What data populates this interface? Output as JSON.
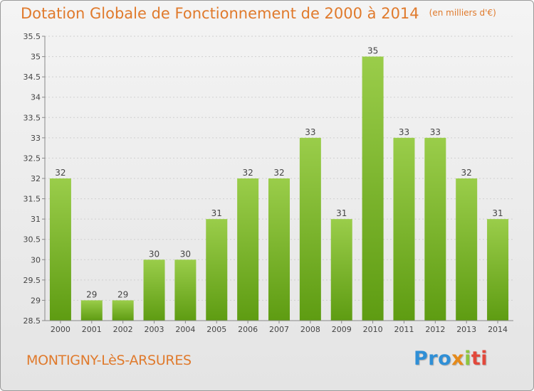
{
  "title": "Dotation Globale de Fonctionnement de 2000 à 2014",
  "unit": "(en milliers d'€)",
  "commune": "MONTIGNY-LèS-ARSURES",
  "logo": {
    "p1": "Pro",
    "p2": "x",
    "p3": "i",
    "p4": "ti"
  },
  "colors": {
    "bar_top": "#9acd4a",
    "bar_bottom": "#5e9c12",
    "title": "#e07a2c"
  },
  "chart_data": {
    "type": "bar",
    "categories": [
      "2000",
      "2001",
      "2002",
      "2003",
      "2004",
      "2005",
      "2006",
      "2007",
      "2008",
      "2009",
      "2010",
      "2011",
      "2012",
      "2013",
      "2014"
    ],
    "values": [
      32,
      29,
      29,
      30,
      30,
      31,
      32,
      32,
      33,
      31,
      35,
      33,
      33,
      32,
      31
    ],
    "data_labels": [
      "32",
      "29",
      "29",
      "30",
      "30",
      "31",
      "32",
      "32",
      "33",
      "31",
      "35",
      "33",
      "33",
      "32",
      "31"
    ],
    "ylim": [
      28.5,
      35.5
    ],
    "yticks": [
      28.5,
      29,
      29.5,
      30,
      30.5,
      31,
      31.5,
      32,
      32.5,
      33,
      33.5,
      34,
      34.5,
      35,
      35.5
    ],
    "ytick_labels": [
      "28.5",
      "29",
      "29.5",
      "30",
      "30.5",
      "31",
      "31.5",
      "32",
      "32.5",
      "33",
      "33.5",
      "34",
      "34.5",
      "35",
      "35.5"
    ],
    "grid": true,
    "legend": "none"
  }
}
